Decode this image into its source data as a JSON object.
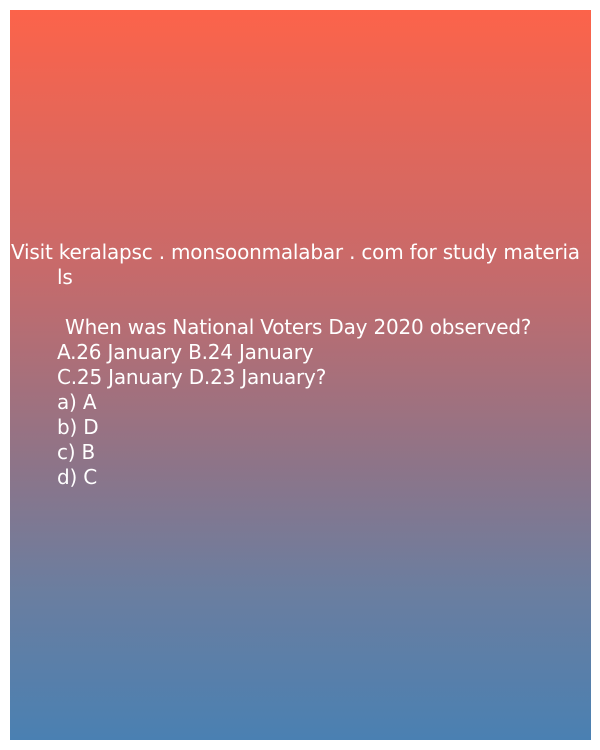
{
  "promo": {
    "line1": "Visit keralapsc . monsoonmalabar . com for study materia",
    "line2": "ls"
  },
  "question": {
    "text": "When was National Voters Day 2020 observed?",
    "options_row1": "A.26 January B.24 January",
    "options_row2": "C.25 January D.23 January?"
  },
  "answers": [
    "a) A",
    "b) D",
    "c) B",
    "d) C"
  ],
  "colors": {
    "gradient_top": "#fc634a",
    "gradient_bottom": "#4a80b2",
    "text": "#ffffff"
  }
}
